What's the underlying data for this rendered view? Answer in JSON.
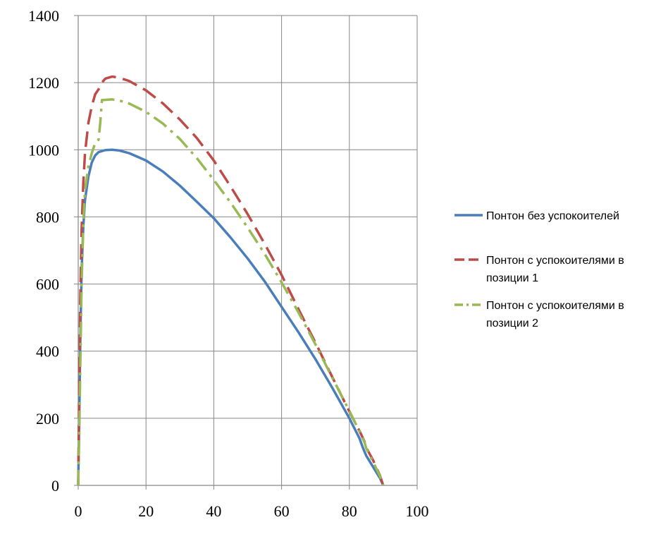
{
  "chart_data": {
    "type": "line",
    "title": "",
    "xlabel": "",
    "ylabel": "",
    "xlim": [
      0,
      100
    ],
    "ylim": [
      0,
      1400
    ],
    "x_ticks": [
      "0",
      "20",
      "40",
      "60",
      "80",
      "100"
    ],
    "y_ticks": [
      "0",
      "200",
      "400",
      "600",
      "800",
      "1000",
      "1200",
      "1400"
    ],
    "grid": true,
    "legend_position": "right",
    "series": [
      {
        "name_lines": [
          "Понтон без успокоителей"
        ],
        "color": "#4a7ebb",
        "style": "solid",
        "points": [
          [
            0,
            0
          ],
          [
            0.3,
            200
          ],
          [
            0.6,
            420
          ],
          [
            1,
            640
          ],
          [
            1.5,
            770
          ],
          [
            2,
            850
          ],
          [
            3,
            920
          ],
          [
            4,
            962
          ],
          [
            5,
            983
          ],
          [
            6,
            993
          ],
          [
            8,
            999
          ],
          [
            10,
            1000
          ],
          [
            12,
            998
          ],
          [
            15,
            990
          ],
          [
            20,
            968
          ],
          [
            25,
            935
          ],
          [
            30,
            893
          ],
          [
            35,
            845
          ],
          [
            40,
            796
          ],
          [
            45,
            738
          ],
          [
            50,
            676
          ],
          [
            55,
            608
          ],
          [
            60,
            532
          ],
          [
            65,
            456
          ],
          [
            70,
            376
          ],
          [
            75,
            290
          ],
          [
            80,
            200
          ],
          [
            83,
            140
          ],
          [
            84,
            112
          ],
          [
            85,
            88
          ],
          [
            87,
            55
          ],
          [
            89,
            22
          ],
          [
            90,
            0
          ]
        ]
      },
      {
        "name_lines": [
          "Понтон с успокоителями в",
          "позиции 1"
        ],
        "color": "#be4b48",
        "style": "dashed",
        "points": [
          [
            0,
            0
          ],
          [
            0.3,
            300
          ],
          [
            0.6,
            550
          ],
          [
            1,
            760
          ],
          [
            1.5,
            900
          ],
          [
            2,
            990
          ],
          [
            3,
            1080
          ],
          [
            4,
            1130
          ],
          [
            5,
            1165
          ],
          [
            6,
            1180
          ],
          [
            7,
            1200
          ],
          [
            8,
            1212
          ],
          [
            10,
            1218
          ],
          [
            12,
            1215
          ],
          [
            15,
            1205
          ],
          [
            20,
            1177
          ],
          [
            25,
            1138
          ],
          [
            30,
            1090
          ],
          [
            35,
            1035
          ],
          [
            40,
            968
          ],
          [
            45,
            890
          ],
          [
            50,
            808
          ],
          [
            55,
            720
          ],
          [
            60,
            627
          ],
          [
            65,
            525
          ],
          [
            70,
            425
          ],
          [
            75,
            322
          ],
          [
            80,
            220
          ],
          [
            83,
            162
          ],
          [
            84.5,
            130
          ],
          [
            85,
            112
          ],
          [
            87,
            75
          ],
          [
            89,
            30
          ],
          [
            90,
            0
          ]
        ]
      },
      {
        "name_lines": [
          "Понтон с успокоителями в",
          "позиции 2"
        ],
        "color": "#98b954",
        "style": "dashdot",
        "points": [
          [
            0,
            0
          ],
          [
            0.3,
            150
          ],
          [
            0.6,
            350
          ],
          [
            1,
            600
          ],
          [
            1.5,
            780
          ],
          [
            2,
            880
          ],
          [
            3,
            950
          ],
          [
            4,
            990
          ],
          [
            5,
            1020
          ],
          [
            6,
            1030
          ],
          [
            6.5,
            1080
          ],
          [
            7,
            1148
          ],
          [
            10,
            1150
          ],
          [
            12,
            1147
          ],
          [
            15,
            1138
          ],
          [
            20,
            1113
          ],
          [
            25,
            1078
          ],
          [
            30,
            1032
          ],
          [
            35,
            975
          ],
          [
            40,
            910
          ],
          [
            45,
            842
          ],
          [
            50,
            768
          ],
          [
            55,
            690
          ],
          [
            60,
            605
          ],
          [
            65,
            515
          ],
          [
            70,
            420
          ],
          [
            75,
            320
          ],
          [
            80,
            222
          ],
          [
            83,
            160
          ],
          [
            84.5,
            128
          ],
          [
            85,
            110
          ],
          [
            87,
            70
          ],
          [
            89,
            28
          ],
          [
            90,
            0
          ]
        ]
      }
    ]
  }
}
